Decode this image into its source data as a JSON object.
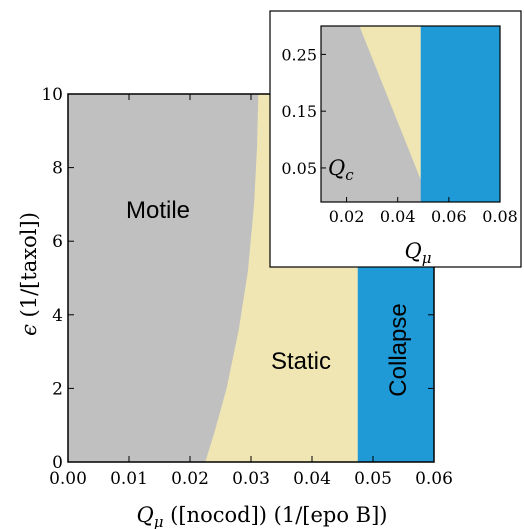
{
  "colors": {
    "motile": "#c0c0c0",
    "static": "#f0e6b4",
    "collapse": "#1f9ad6",
    "frame": "#000000",
    "inset_border": "#000000"
  },
  "chart_data": [
    {
      "type": "area",
      "xlim": [
        0,
        0.06
      ],
      "ylim": [
        0,
        10
      ],
      "xticks": [
        0.0,
        0.01,
        0.02,
        0.03,
        0.04,
        0.05,
        0.06
      ],
      "xtick_labels": [
        "0.00",
        "0.01",
        "0.02",
        "0.03",
        "0.04",
        "0.05",
        "0.06"
      ],
      "yticks": [
        0,
        2,
        4,
        6,
        8,
        10
      ],
      "ytick_labels": [
        "0",
        "2",
        "4",
        "6",
        "8",
        "10"
      ],
      "xlabel": "Q_μ ([nocod]) (1/[epo B])",
      "ylabel": "ε (1/[taxol])",
      "regions": [
        {
          "name": "Motile",
          "label": "Motile"
        },
        {
          "name": "Static",
          "label": "Static"
        },
        {
          "name": "Collapse",
          "label": "Collapse"
        }
      ],
      "motile_static_boundary": {
        "x": [
          0.0225,
          0.024,
          0.026,
          0.028,
          0.0295,
          0.0305,
          0.031,
          0.0312
        ],
        "y": [
          0,
          0.8,
          2.0,
          3.6,
          5.2,
          7.0,
          8.6,
          10
        ]
      },
      "static_collapse_boundary_x": 0.0475
    },
    {
      "type": "area",
      "xlim": [
        0.01,
        0.08
      ],
      "ylim": [
        -0.01,
        0.3
      ],
      "xticks": [
        0.02,
        0.04,
        0.06,
        0.08
      ],
      "xtick_labels": [
        "0.02",
        "0.04",
        "0.06",
        "0.08"
      ],
      "yticks": [
        0.05,
        0.15,
        0.25
      ],
      "ytick_labels": [
        "0.05",
        "0.15",
        "0.25"
      ],
      "xlabel": "Q_μ",
      "ylabel": "Q_c",
      "motile_static_boundary": {
        "x": [
          0.0525,
          0.025
        ],
        "y": [
          -0.01,
          0.3
        ]
      },
      "static_collapse_boundary_x": 0.049
    }
  ]
}
